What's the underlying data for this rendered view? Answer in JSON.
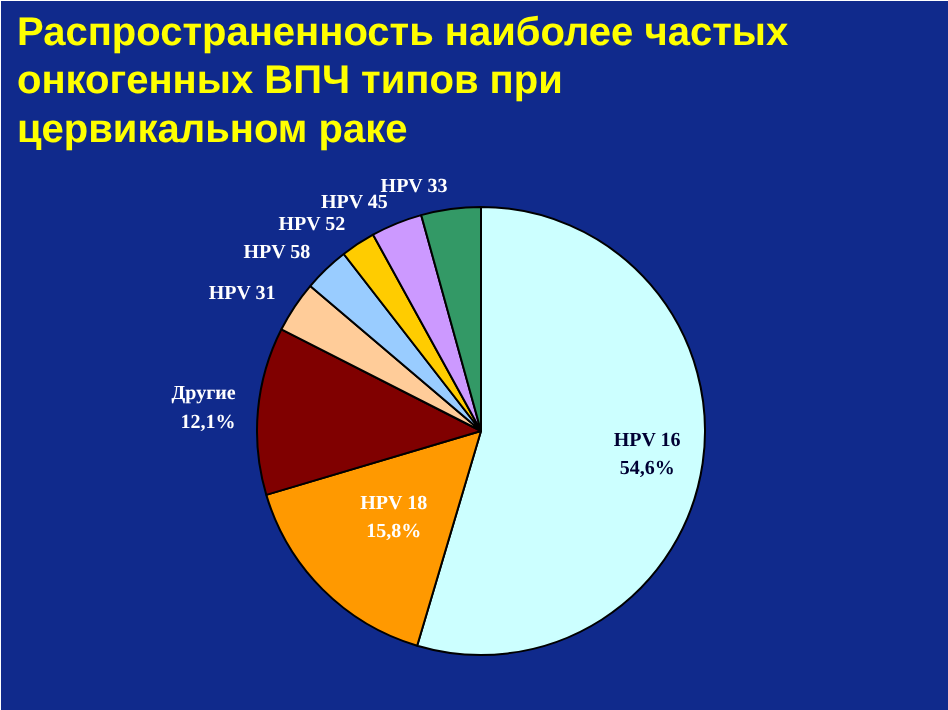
{
  "chart_data": {
    "type": "pie",
    "title": "Распространенность наиболее частых онкогенных ВПЧ типов при цервикальном раке",
    "categories": [
      "HPV 16",
      "HPV 18",
      "Другие",
      "HPV 31",
      "HPV 58",
      "HPV 52",
      "HPV 45",
      "HPV 33"
    ],
    "values": [
      54.6,
      15.8,
      12.1,
      3.7,
      3.3,
      2.5,
      3.7,
      4.3
    ],
    "value_labels": [
      "54,6%",
      "15,8%",
      "12,1%",
      null,
      null,
      null,
      null,
      null
    ],
    "colors": [
      "#ccffff",
      "#ff9900",
      "#800000",
      "#ffcc99",
      "#99ccff",
      "#ffcc00",
      "#cc99ff",
      "#339966"
    ]
  }
}
